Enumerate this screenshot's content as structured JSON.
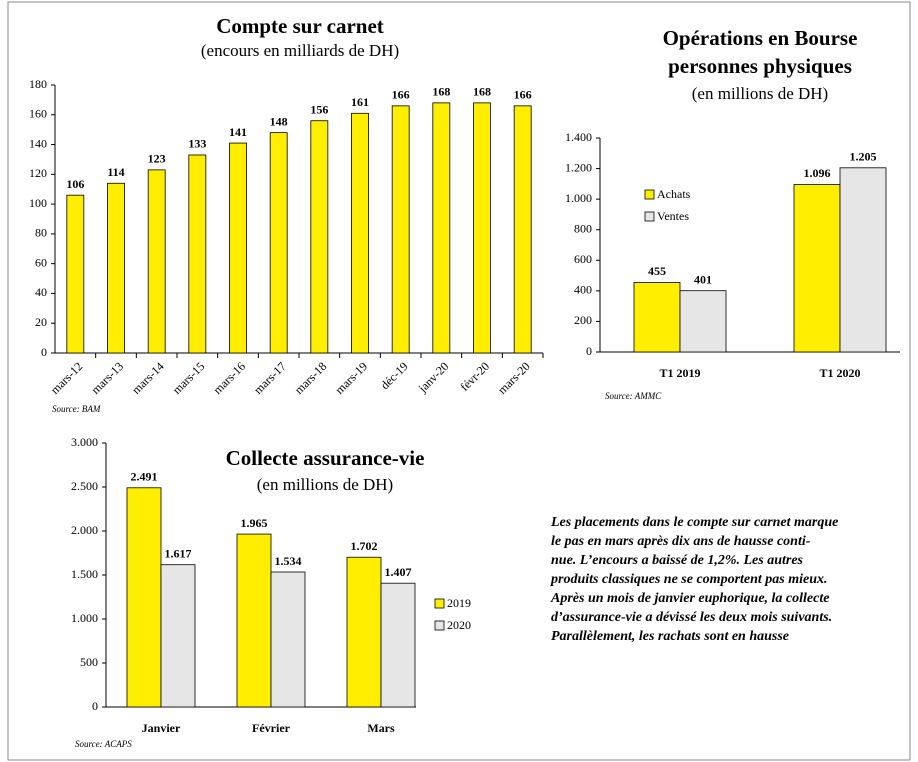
{
  "chart_data": [
    {
      "type": "bar",
      "title": [
        "Compte sur carnet"
      ],
      "subtitle": "(encours en milliards de DH)",
      "source": "Source: BAM",
      "categories": [
        "mars-12",
        "mars-13",
        "mars-14",
        "mars-15",
        "mars-16",
        "mars-17",
        "mars-18",
        "mars-19",
        "déc-19",
        "janv-20",
        "févr-20",
        "mars-20"
      ],
      "series": [
        {
          "name": null,
          "color": "#ffee00",
          "values": [
            106,
            114,
            123,
            133,
            141,
            148,
            156,
            161,
            166,
            168,
            168,
            166
          ]
        }
      ],
      "ylim": [
        0,
        180
      ],
      "yticks": [
        0,
        20,
        40,
        60,
        80,
        100,
        120,
        140,
        160,
        180
      ],
      "legend": false
    },
    {
      "type": "bar",
      "title": [
        "Opérations en Bourse",
        "personnes physiques"
      ],
      "subtitle": "(en millions de DH)",
      "source": "Source: AMMC",
      "categories": [
        "T1 2019",
        "T1 2020"
      ],
      "series": [
        {
          "name": "Achats",
          "color": "#ffee00",
          "values": [
            455,
            1096
          ],
          "value_labels": [
            "455",
            "1.096"
          ]
        },
        {
          "name": "Ventes",
          "color": "#e6e6e6",
          "values": [
            401,
            1205
          ],
          "value_labels": [
            "401",
            "1.205"
          ]
        }
      ],
      "ylim": [
        0,
        1400
      ],
      "yticks": [
        0,
        200,
        400,
        600,
        800,
        {
          "value": 1000,
          "label": "1.000"
        },
        {
          "value": 1200,
          "label": "1.200"
        },
        {
          "value": 1400,
          "label": "1.400"
        }
      ],
      "legend": true
    },
    {
      "type": "bar",
      "title": [
        "Collecte assurance-vie"
      ],
      "subtitle": "(en millions de DH)",
      "source": "Source: ACAPS",
      "categories": [
        "Janvier",
        "Février",
        "Mars"
      ],
      "series": [
        {
          "name": "2019",
          "color": "#ffee00",
          "values": [
            2491,
            1965,
            1702
          ],
          "value_labels": [
            "2.491",
            "1.965",
            "1.702"
          ]
        },
        {
          "name": "2020",
          "color": "#e6e6e6",
          "values": [
            1617,
            1534,
            1407
          ],
          "value_labels": [
            "1.617",
            "1.534",
            "1.407"
          ]
        }
      ],
      "ylim": [
        0,
        3000
      ],
      "yticks": [
        0,
        500,
        {
          "value": 1000,
          "label": "1.000"
        },
        {
          "value": 1500,
          "label": "1.500"
        },
        {
          "value": 2000,
          "label": "2.000"
        },
        {
          "value": 2500,
          "label": "2.500"
        },
        {
          "value": 3000,
          "label": "3.000"
        }
      ],
      "legend": true
    }
  ],
  "caption": [
    "Les placements dans le compte sur carnet marque",
    "le pas en mars après dix ans de hausse conti-",
    "nue. L’encours a baissé de 1,2%. Les autres",
    "produits classiques ne se comportent pas mieux.",
    "Après un mois de janvier euphorique, la collecte",
    "d’assurance-vie a dévissé les deux mois suivants.",
    "Parallèlement, les rachats sont en hausse"
  ]
}
